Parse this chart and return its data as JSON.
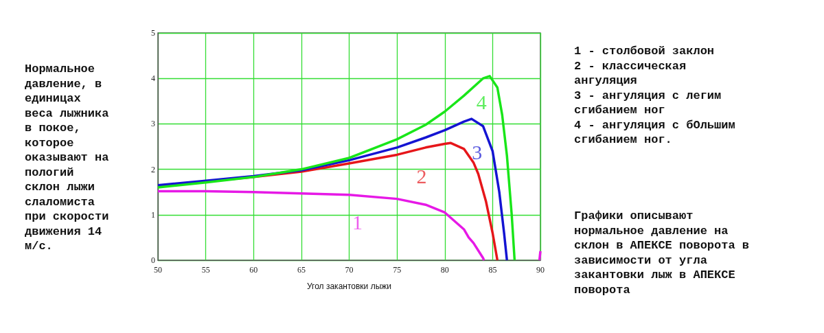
{
  "chart_data": {
    "type": "line",
    "xlabel": "Угол закантовки лыжи",
    "ylabel": "Нормальное давление, в единицах веса лыжника в покое, которое оказывают на пологий склон лыжи слаломиста при скорости движения 14 м/с.",
    "xlim": [
      50,
      90
    ],
    "ylim": [
      0,
      5
    ],
    "xticks": [
      50,
      55,
      60,
      65,
      70,
      75,
      80,
      85,
      90
    ],
    "yticks": [
      0,
      1,
      2,
      3,
      4,
      5
    ],
    "grid": true,
    "legend": false,
    "marker": "none",
    "line_style": "solid",
    "series": [
      {
        "name": "1",
        "color": "#e619e6",
        "x": [
          50,
          55,
          60,
          65,
          70,
          75,
          78,
          80,
          82,
          82.5,
          83,
          84,
          84.1,
          null,
          89.9,
          90
        ],
        "values": [
          1.52,
          1.52,
          1.5,
          1.47,
          1.44,
          1.35,
          1.22,
          1.05,
          0.68,
          0.5,
          0.38,
          0.05,
          0,
          null,
          0,
          0.2
        ]
      },
      {
        "name": "2",
        "color": "#e6161a",
        "x": [
          50,
          55,
          60,
          65,
          70,
          75,
          78,
          80,
          80.6,
          82,
          83,
          83.5,
          84.3,
          85,
          85.5
        ],
        "values": [
          1.64,
          1.73,
          1.83,
          1.95,
          2.13,
          2.32,
          2.48,
          2.56,
          2.58,
          2.45,
          2.15,
          1.9,
          1.3,
          0.6,
          0
        ]
      },
      {
        "name": "3",
        "color": "#1414d2",
        "x": [
          50,
          55,
          60,
          65,
          70,
          75,
          78,
          80,
          82,
          82.8,
          84,
          85,
          85.7,
          86.2,
          86.5
        ],
        "values": [
          1.65,
          1.75,
          1.85,
          1.98,
          2.2,
          2.48,
          2.7,
          2.86,
          3.05,
          3.11,
          2.95,
          2.4,
          1.5,
          0.6,
          0
        ]
      },
      {
        "name": "4",
        "color": "#19e619",
        "x": [
          50,
          55,
          60,
          65,
          70,
          75,
          78,
          80,
          82,
          84,
          84.7,
          85.5,
          86,
          86.5,
          87,
          87.3
        ],
        "values": [
          1.6,
          1.71,
          1.83,
          2.0,
          2.25,
          2.66,
          2.98,
          3.27,
          3.62,
          4.0,
          4.05,
          3.8,
          3.2,
          2.3,
          1.0,
          0
        ]
      }
    ],
    "annotations": [
      "1 - столбовой заклон",
      "2 - классическая ангуляция",
      "3 - ангуляция с легим сгибанием ног",
      "4 - ангуляция с бОльшим сгибанием ног.",
      "Графики описывают нормальное давление на склон в АПЕКСЕ поворота в зависимости от угла закантовки лыж в АПЕКСЕ поворота"
    ]
  }
}
